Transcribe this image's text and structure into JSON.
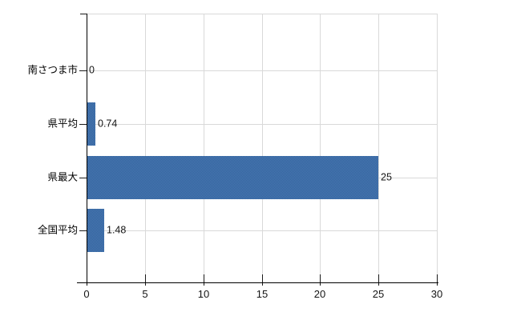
{
  "chart_data": {
    "type": "bar",
    "orientation": "horizontal",
    "title": "",
    "xlabel": "",
    "ylabel": "",
    "categories": [
      "南さつま市",
      "県平均",
      "県最大",
      "全国平均"
    ],
    "values": [
      0,
      0.74,
      25,
      1.48
    ],
    "value_labels": [
      "0",
      "0.74",
      "25",
      "1.48"
    ],
    "xlim": [
      0,
      30
    ],
    "x_ticks": [
      0,
      5,
      10,
      15,
      20,
      25,
      30
    ],
    "x_tick_labels": [
      "0",
      "5",
      "10",
      "15",
      "20",
      "25",
      "30"
    ],
    "grid": true,
    "legend": false,
    "colors": {
      "bar": "#3e6ea8",
      "bar_dither_dark": "#2f619e",
      "bar_dither_light": "#4d7ab1",
      "gridline": "#d9d9d9",
      "axis": "#000000",
      "text": "#141414",
      "background": "#ffffff"
    }
  }
}
